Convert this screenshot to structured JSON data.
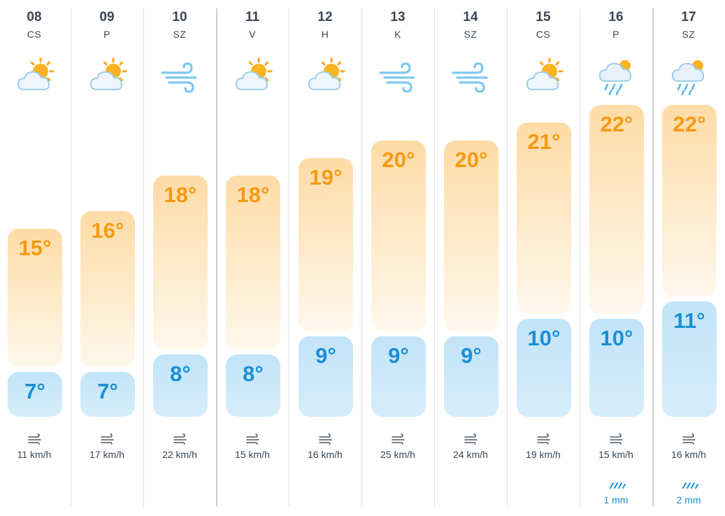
{
  "days": [
    {
      "date": "08",
      "dow": "CS",
      "icon": "sun-cloud-icon",
      "high": "15°",
      "low": "7°",
      "high_value": 15,
      "low_value": 7,
      "wind": "11 km/h",
      "precip": ""
    },
    {
      "date": "09",
      "dow": "P",
      "icon": "sun-cloud-icon",
      "high": "16°",
      "low": "7°",
      "high_value": 16,
      "low_value": 7,
      "wind": "17 km/h",
      "precip": ""
    },
    {
      "date": "10",
      "dow": "SZ",
      "icon": "wind-icon",
      "high": "18°",
      "low": "8°",
      "high_value": 18,
      "low_value": 8,
      "wind": "22 km/h",
      "precip": ""
    },
    {
      "date": "11",
      "dow": "V",
      "icon": "sun-cloud-icon",
      "high": "18°",
      "low": "8°",
      "high_value": 18,
      "low_value": 8,
      "wind": "15 km/h",
      "precip": ""
    },
    {
      "date": "12",
      "dow": "H",
      "icon": "sun-cloud-icon",
      "high": "19°",
      "low": "9°",
      "high_value": 19,
      "low_value": 9,
      "wind": "16 km/h",
      "precip": ""
    },
    {
      "date": "13",
      "dow": "K",
      "icon": "wind-icon",
      "high": "20°",
      "low": "9°",
      "high_value": 20,
      "low_value": 9,
      "wind": "25 km/h",
      "precip": ""
    },
    {
      "date": "14",
      "dow": "SZ",
      "icon": "wind-icon",
      "high": "20°",
      "low": "9°",
      "high_value": 20,
      "low_value": 9,
      "wind": "24 km/h",
      "precip": ""
    },
    {
      "date": "15",
      "dow": "CS",
      "icon": "sun-cloud-icon",
      "high": "21°",
      "low": "10°",
      "high_value": 21,
      "low_value": 10,
      "wind": "19 km/h",
      "precip": ""
    },
    {
      "date": "16",
      "dow": "P",
      "icon": "rain-cloud-icon",
      "high": "22°",
      "low": "10°",
      "high_value": 22,
      "low_value": 10,
      "wind": "15 km/h",
      "precip": "1 mm"
    },
    {
      "date": "17",
      "dow": "SZ",
      "icon": "rain-cloud-icon",
      "high": "22°",
      "low": "11°",
      "high_value": 22,
      "low_value": 11,
      "wind": "16 km/h",
      "precip": "2 mm"
    }
  ],
  "colors": {
    "high_text": "#f59a12",
    "low_text": "#1a8fd6",
    "label_text": "#3a4654",
    "wind_glyph": "#7fc8ef"
  }
}
